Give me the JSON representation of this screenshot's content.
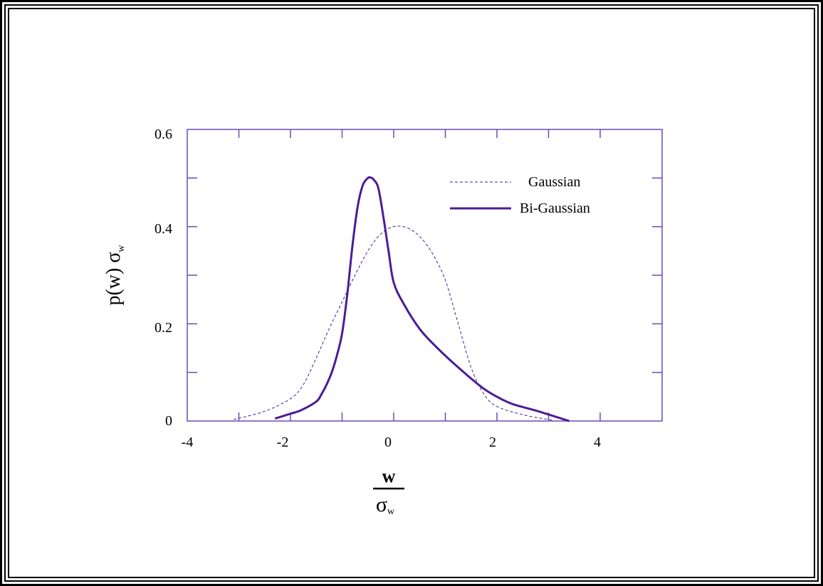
{
  "chart_data": {
    "type": "line",
    "title": "",
    "xlabel_numerator": "w",
    "xlabel_denominator": "σ",
    "xlabel_denominator_sub": "w",
    "ylabel_main": "p(w) σ",
    "ylabel_sub": "w",
    "xlim": [
      -4,
      5.2
    ],
    "ylim": [
      0,
      0.6
    ],
    "x_ticks": [
      "-4",
      "-2",
      "0",
      "2",
      "4"
    ],
    "y_ticks": [
      "0",
      "0.2",
      "0.4",
      "0.6"
    ],
    "grid": false,
    "legend_position": "top-right",
    "colors": {
      "axis": "#6a4bb5",
      "series": "#4b1c96",
      "frame": "#000000"
    },
    "series": [
      {
        "name": "Gaussian",
        "style": "dashed",
        "x": [
          -3.1,
          -2.5,
          -2.0,
          -1.75,
          -1.5,
          -1.25,
          -1.0,
          -0.75,
          -0.5,
          -0.25,
          0.0,
          0.25,
          0.5,
          0.75,
          1.0,
          1.25,
          1.5,
          1.75,
          2.0,
          2.5,
          3.0,
          3.1
        ],
        "y": [
          0.003,
          0.02,
          0.046,
          0.075,
          0.13,
          0.19,
          0.245,
          0.3,
          0.35,
          0.385,
          0.4,
          0.398,
          0.38,
          0.345,
          0.29,
          0.2,
          0.11,
          0.055,
          0.03,
          0.013,
          0.003,
          0.001
        ]
      },
      {
        "name": "Bi-Gaussian",
        "style": "solid",
        "x": [
          -2.3,
          -2.0,
          -1.8,
          -1.5,
          -1.4,
          -1.3,
          -1.2,
          -1.1,
          -1.0,
          -0.9,
          -0.8,
          -0.7,
          -0.6,
          -0.5,
          -0.45,
          -0.4,
          -0.3,
          -0.2,
          -0.1,
          0.0,
          0.2,
          0.5,
          0.8,
          1.2,
          1.7,
          2.0,
          2.3,
          2.8,
          3.4
        ],
        "y": [
          0.005,
          0.015,
          0.022,
          0.04,
          0.055,
          0.075,
          0.1,
          0.135,
          0.18,
          0.26,
          0.36,
          0.44,
          0.485,
          0.5,
          0.501,
          0.498,
          0.48,
          0.42,
          0.35,
          0.285,
          0.24,
          0.19,
          0.155,
          0.115,
          0.07,
          0.05,
          0.035,
          0.02,
          0.0
        ]
      }
    ]
  }
}
